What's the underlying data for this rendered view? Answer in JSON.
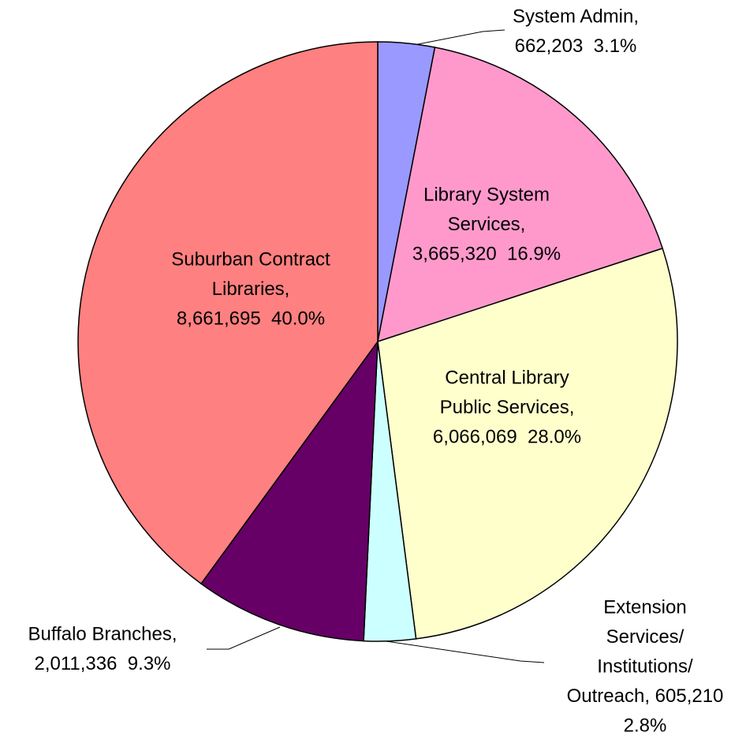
{
  "chart_data": {
    "type": "pie",
    "labels": [
      [
        "System Admin,",
        "662,203  3.1%"
      ],
      [
        "Library System",
        "Services,",
        "3,665,320  16.9%"
      ],
      [
        "Central Library",
        "Public Services,",
        "6,066,069  28.0%"
      ],
      [
        "Extension",
        "Services/",
        "Institutions/",
        "Outreach, 605,210",
        "2.8%"
      ],
      [
        "Buffalo Branches,",
        "2,011,336  9.3%"
      ],
      [
        "Suburban Contract",
        "Libraries,",
        "8,661,695  40.0%"
      ]
    ],
    "values": [
      662203,
      3665320,
      6066069,
      605210,
      2011336,
      8661695
    ],
    "colors": [
      "#9999ff",
      "#ff99cc",
      "#ffffcc",
      "#ccffff",
      "#660066",
      "#ff8080"
    ]
  }
}
